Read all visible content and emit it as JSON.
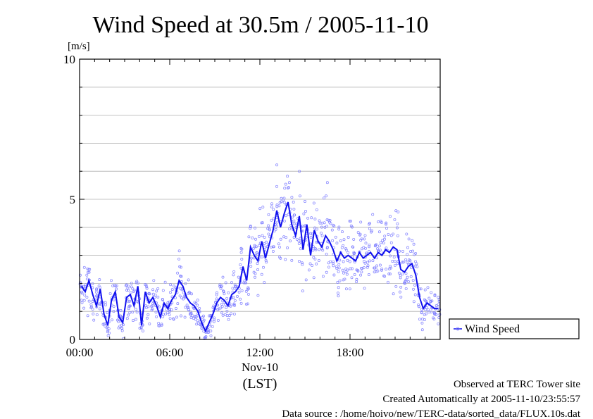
{
  "chart_data": {
    "type": "line",
    "title": "Wind Speed at 30.5m / 2005-11-10",
    "ylabel": "[m/s]",
    "ylim": [
      0,
      10
    ],
    "yticks": [
      "0",
      "5",
      "10"
    ],
    "xlim": [
      "00:00",
      "24:00"
    ],
    "xticks": [
      "00:00",
      "06:00",
      "12:00",
      "18:00"
    ],
    "date_label": "Nov-10",
    "xlabel": "(LST)",
    "grid": true,
    "legend_position": "right",
    "colors": {
      "line": "#1010ee",
      "points": "#8080ff"
    },
    "series": [
      {
        "name": "Wind Speed",
        "x_hours": [
          0,
          0.25,
          0.5,
          0.75,
          1,
          1.25,
          1.5,
          1.75,
          2,
          2.25,
          2.5,
          2.75,
          3,
          3.25,
          3.5,
          3.75,
          4,
          4.25,
          4.5,
          4.75,
          5,
          5.25,
          5.5,
          5.75,
          6,
          6.25,
          6.5,
          6.75,
          7,
          7.25,
          7.5,
          7.75,
          8,
          8.25,
          8.5,
          8.75,
          9,
          9.25,
          9.5,
          9.75,
          10,
          10.25,
          10.5,
          10.75,
          11,
          11.25,
          11.5,
          11.75,
          12,
          12.25,
          12.5,
          12.75,
          13,
          13.25,
          13.5,
          13.75,
          14,
          14.25,
          14.5,
          14.75,
          15,
          15.25,
          15.5,
          15.75,
          16,
          16.25,
          16.5,
          16.75,
          17,
          17.25,
          17.5,
          17.75,
          18,
          18.25,
          18.5,
          18.75,
          19,
          19.25,
          19.5,
          19.75,
          20,
          20.25,
          20.5,
          20.75,
          21,
          21.25,
          21.5,
          21.75,
          22,
          22.25,
          22.5,
          22.75,
          23,
          23.25,
          23.5,
          23.75
        ],
        "values": [
          1.9,
          1.7,
          2.1,
          1.6,
          1.2,
          1.8,
          0.9,
          0.5,
          1.4,
          1.7,
          0.8,
          0.6,
          1.5,
          1.6,
          1.2,
          1.9,
          0.5,
          1.7,
          1.3,
          1.5,
          1.2,
          0.8,
          1.3,
          1.1,
          1.4,
          1.6,
          2.1,
          1.9,
          1.5,
          1.3,
          1.2,
          1.0,
          0.6,
          0.3,
          0.6,
          0.9,
          1.3,
          1.5,
          1.4,
          1.2,
          1.6,
          1.7,
          1.9,
          2.6,
          2.1,
          3.3,
          3.0,
          2.8,
          3.5,
          2.9,
          3.4,
          3.9,
          4.6,
          4.0,
          4.5,
          4.9,
          4.1,
          3.7,
          4.4,
          3.2,
          4.1,
          3.0,
          3.9,
          3.5,
          3.3,
          3.7,
          3.5,
          3.2,
          2.8,
          3.1,
          2.9,
          3.0,
          2.9,
          2.8,
          3.1,
          2.9,
          3.0,
          3.1,
          2.9,
          3.1,
          3.0,
          3.2,
          3.1,
          3.3,
          3.2,
          2.5,
          2.4,
          2.6,
          2.7,
          2.3,
          1.5,
          1.1,
          1.3,
          1.2,
          1.1,
          1.1
        ]
      }
    ]
  },
  "footer": {
    "line1": "Observed at TERC Tower site",
    "line2": "Created Automatically at 2005-11-10/23:55:57",
    "line3": "Data source : /home/hoivo/new/TERC-data/sorted_data/FLUX.10s.dat"
  }
}
